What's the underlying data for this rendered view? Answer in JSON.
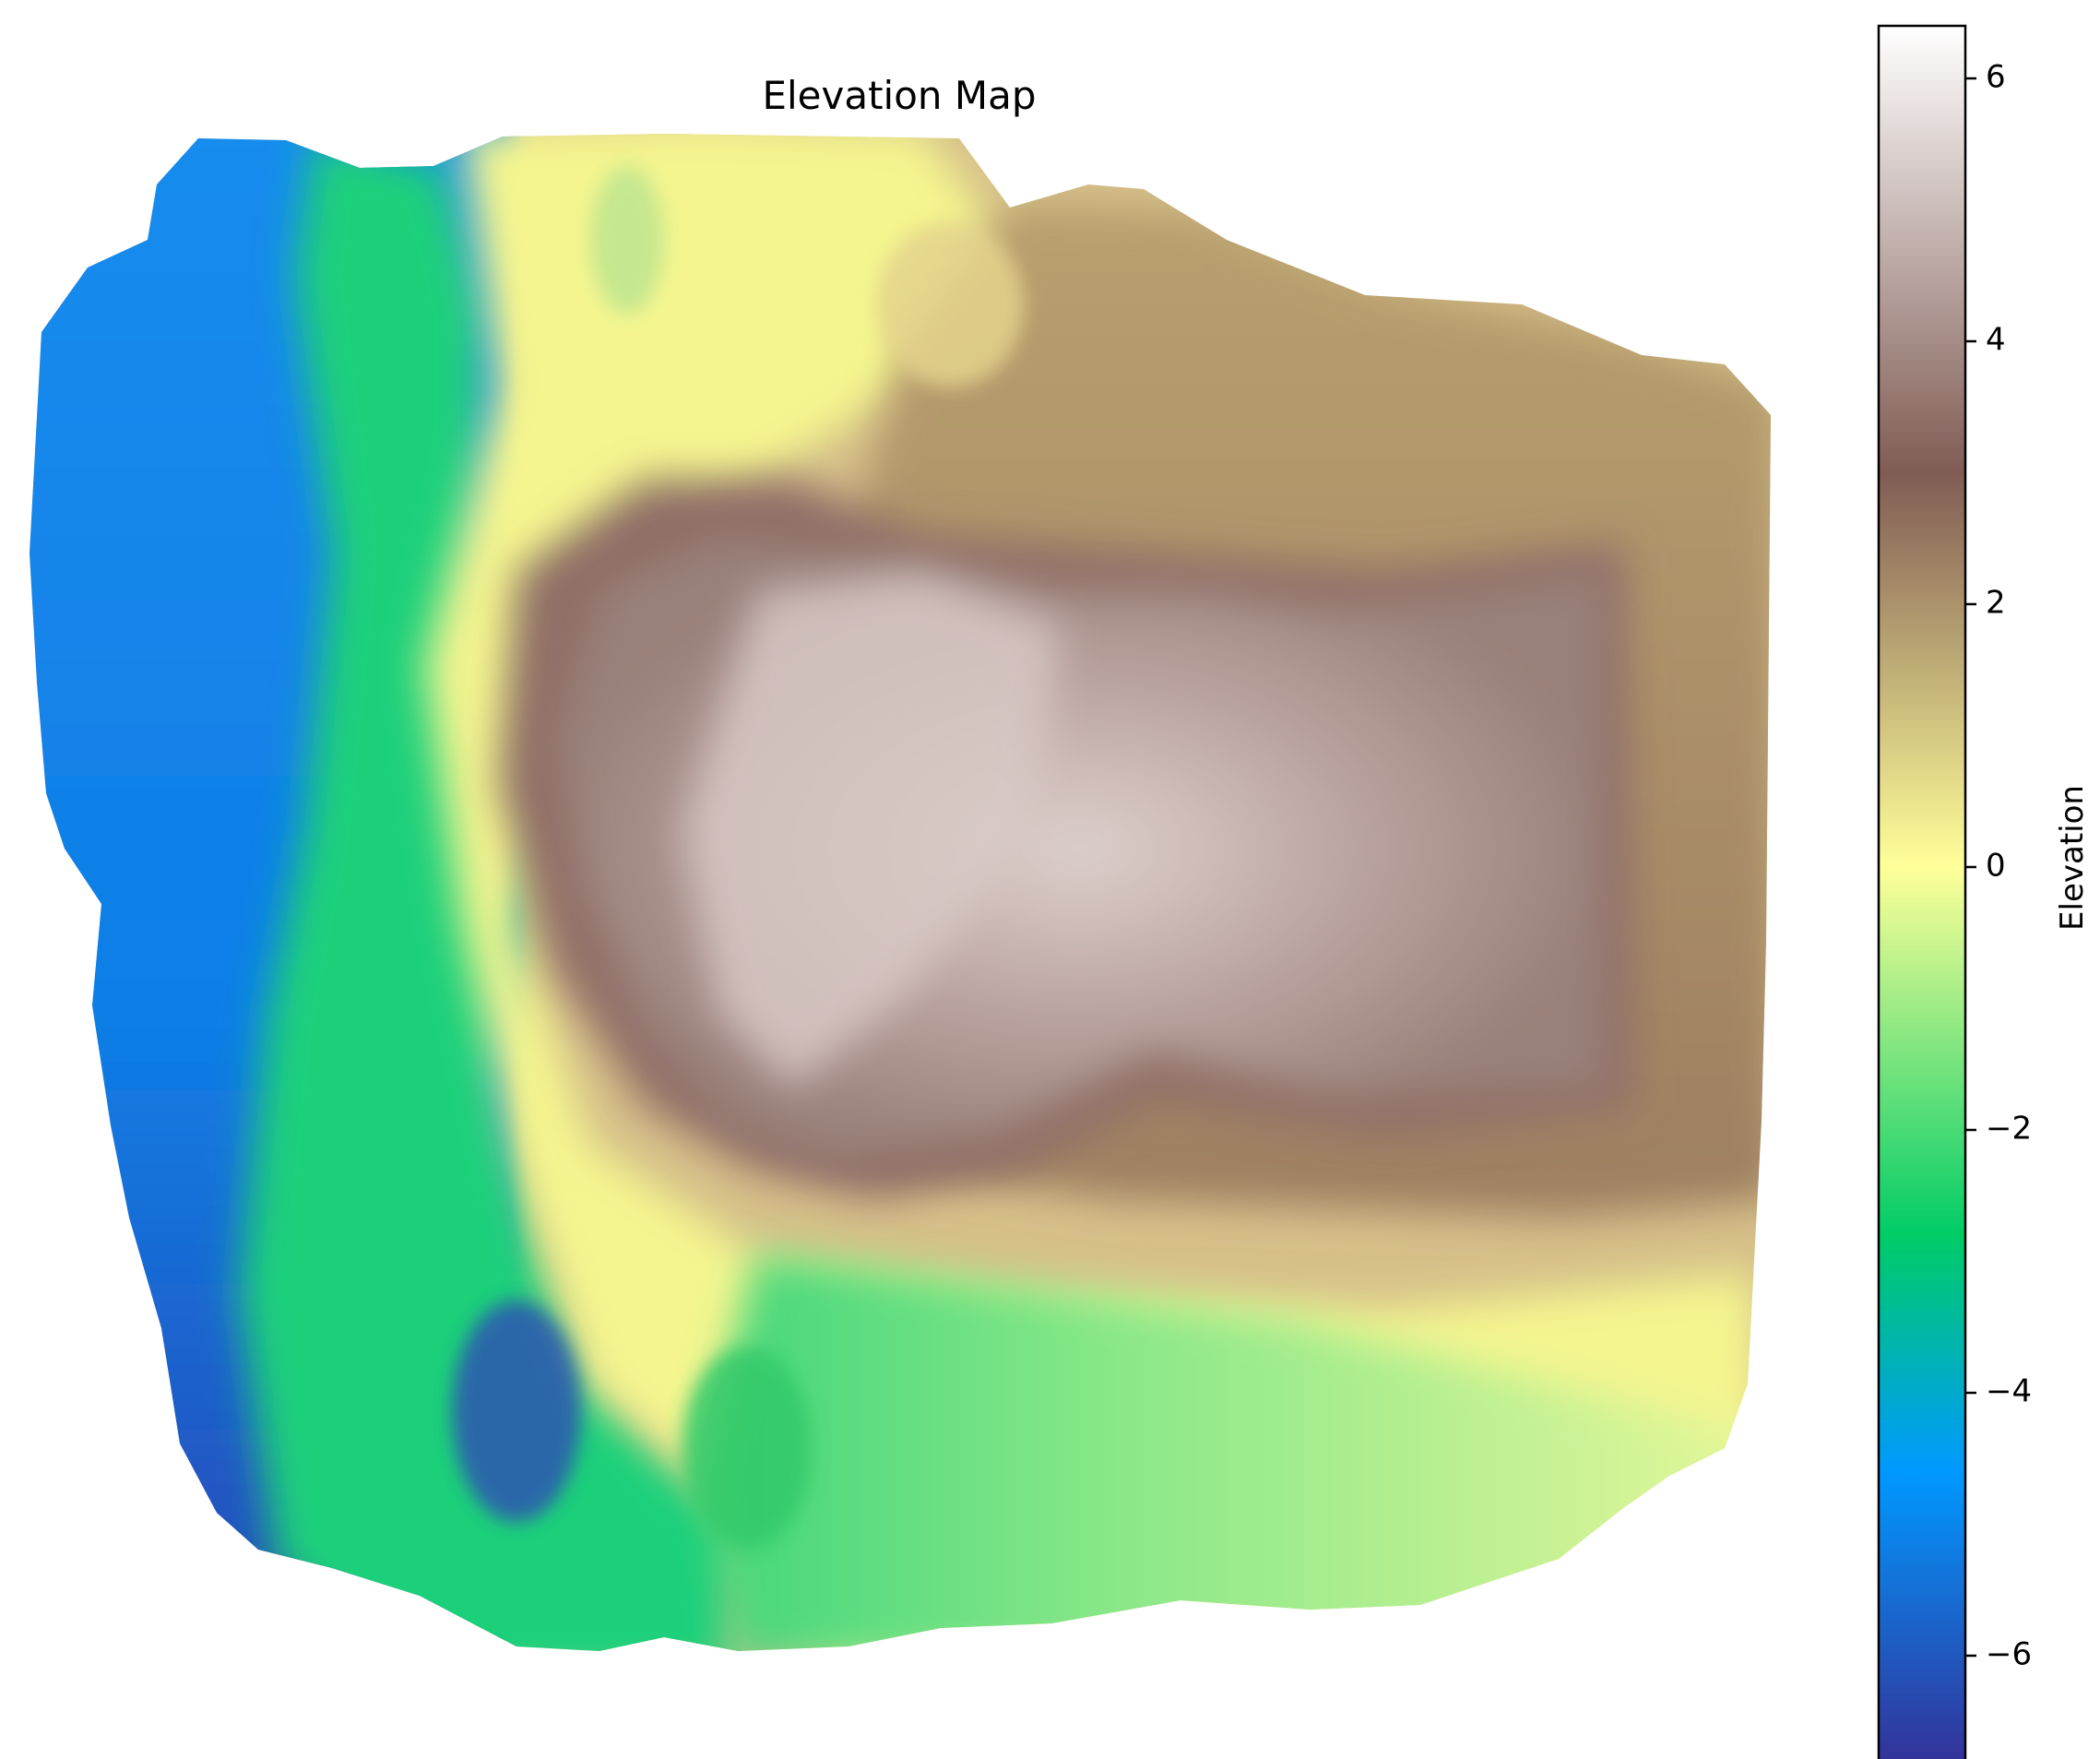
{
  "chart_data": {
    "type": "heatmap",
    "title": "Elevation Map",
    "colorbar": {
      "label": "Elevation",
      "range": [
        -6.8,
        6.4
      ],
      "ticks": [
        -6,
        -4,
        -2,
        0,
        2,
        4,
        6
      ],
      "tick_labels": [
        "−6",
        "−4",
        "−2",
        "0",
        "2",
        "4",
        "6"
      ],
      "colormap": "terrain",
      "color_stops": [
        {
          "value": -6.8,
          "color": "#333399"
        },
        {
          "value": -4.6,
          "color": "#0099ff"
        },
        {
          "value": -2.8,
          "color": "#00cc66"
        },
        {
          "value": 0.0,
          "color": "#ffff99"
        },
        {
          "value": 3.0,
          "color": "#805c54"
        },
        {
          "value": 6.4,
          "color": "#ffffff"
        }
      ]
    },
    "axes_visible": false,
    "regions": [
      {
        "name": "west lowland",
        "approx_elevation": -5.0
      },
      {
        "name": "southwest basin",
        "approx_elevation": -6.5
      },
      {
        "name": "green coastal ring",
        "approx_elevation": -2.5
      },
      {
        "name": "yellow transition belt",
        "approx_elevation": 0.0
      },
      {
        "name": "northeast plateau",
        "approx_elevation": 2.2
      },
      {
        "name": "central summit",
        "approx_elevation": 5.0
      },
      {
        "name": "eastern highland",
        "approx_elevation": 3.8
      },
      {
        "name": "southern plain",
        "approx_elevation": -1.2
      }
    ]
  }
}
